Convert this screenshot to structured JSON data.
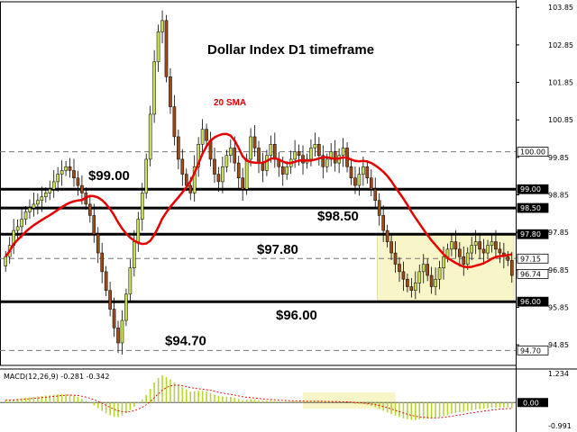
{
  "chart_data": [
    {
      "type": "candlestick",
      "title": "Dollar Index D1 timeframe",
      "ylim": [
        94.3,
        104.0
      ],
      "yticks": [
        "103.85",
        "102.85",
        "101.85",
        "100.85",
        "99.85",
        "98.85",
        "97.85",
        "96.85",
        "95.85",
        "94.85"
      ],
      "current_price": 96.74,
      "current_price_label": "96.74",
      "sma_label": "20 SMA",
      "levels": [
        {
          "value": 99.0,
          "label": "$99.00",
          "tag": "99.00",
          "style": "solid"
        },
        {
          "value": 98.5,
          "label": "$98.50",
          "tag": "98.50",
          "style": "solid"
        },
        {
          "value": 97.8,
          "label": "$97.80",
          "tag": "97.80",
          "style": "solid"
        },
        {
          "value": 96.0,
          "label": "$96.00",
          "tag": "96.00",
          "style": "solid"
        },
        {
          "value": 100.0,
          "label": "",
          "tag": "100.00",
          "style": "dashed"
        },
        {
          "value": 97.15,
          "label": "",
          "tag": "97.15",
          "style": "dashed"
        },
        {
          "value": 94.7,
          "label": "$94.70",
          "tag": "94.70",
          "style": "dashed"
        }
      ],
      "range_box": {
        "from_bar": 93,
        "to_bar": 126,
        "low": 96.0,
        "high": 97.8
      },
      "closes": [
        97.2,
        97.5,
        97.9,
        98.0,
        98.2,
        98.4,
        98.5,
        98.6,
        98.7,
        98.8,
        98.9,
        99.0,
        99.2,
        99.4,
        99.5,
        99.6,
        99.5,
        99.3,
        99.1,
        98.9,
        98.6,
        98.3,
        97.8,
        97.3,
        96.8,
        96.3,
        95.8,
        95.3,
        94.9,
        95.5,
        96.2,
        96.9,
        97.6,
        98.2,
        98.9,
        99.8,
        101.0,
        102.4,
        103.2,
        103.5,
        102.0,
        101.2,
        100.4,
        99.8,
        99.4,
        99.1,
        98.9,
        99.6,
        100.2,
        100.6,
        100.3,
        99.8,
        99.4,
        99.2,
        99.6,
        99.9,
        100.1,
        99.7,
        99.3,
        99.0,
        99.8,
        100.4,
        100.1,
        99.7,
        99.5,
        99.9,
        100.2,
        99.8,
        99.6,
        99.4,
        99.6,
        99.8,
        100.0,
        99.9,
        99.7,
        99.8,
        100.1,
        100.2,
        99.9,
        99.6,
        99.8,
        100.0,
        99.7,
        99.9,
        100.1,
        99.6,
        99.3,
        99.1,
        99.4,
        99.6,
        99.3,
        99.0,
        98.7,
        98.3,
        97.9,
        97.6,
        97.3,
        97.0,
        96.8,
        96.6,
        96.4,
        96.3,
        96.5,
        96.8,
        97.0,
        96.7,
        96.4,
        96.6,
        96.9,
        97.2,
        97.4,
        97.6,
        97.4,
        97.2,
        97.0,
        97.3,
        97.5,
        97.6,
        97.4,
        97.3,
        97.5,
        97.6,
        97.4,
        97.3,
        97.2,
        97.1,
        96.7
      ],
      "macd": {
        "label": "MACD(12,26,9) -0.281 -0.342",
        "ylim": [
          -1.1,
          1.35
        ],
        "tick_top": "1.234",
        "tick_mid": "0.00",
        "tick_bottom": "-0.991",
        "histogram": [
          0.1,
          0.12,
          0.14,
          0.16,
          0.18,
          0.2,
          0.22,
          0.24,
          0.26,
          0.28,
          0.3,
          0.31,
          0.33,
          0.35,
          0.36,
          0.37,
          0.34,
          0.3,
          0.24,
          0.16,
          0.08,
          -0.02,
          -0.12,
          -0.24,
          -0.36,
          -0.46,
          -0.54,
          -0.6,
          -0.62,
          -0.55,
          -0.45,
          -0.32,
          -0.18,
          -0.03,
          0.12,
          0.32,
          0.58,
          0.85,
          1.05,
          1.15,
          1.08,
          0.98,
          0.86,
          0.74,
          0.64,
          0.55,
          0.46,
          0.48,
          0.5,
          0.5,
          0.46,
          0.4,
          0.33,
          0.28,
          0.26,
          0.25,
          0.24,
          0.2,
          0.15,
          0.1,
          0.12,
          0.15,
          0.13,
          0.1,
          0.08,
          0.09,
          0.1,
          0.07,
          0.05,
          0.03,
          0.04,
          0.05,
          0.06,
          0.05,
          0.04,
          0.04,
          0.05,
          0.06,
          0.05,
          0.03,
          0.03,
          0.04,
          0.02,
          0.02,
          0.03,
          0.0,
          -0.03,
          -0.06,
          -0.07,
          -0.07,
          -0.1,
          -0.14,
          -0.2,
          -0.27,
          -0.35,
          -0.42,
          -0.49,
          -0.56,
          -0.62,
          -0.67,
          -0.71,
          -0.74,
          -0.74,
          -0.72,
          -0.7,
          -0.69,
          -0.68,
          -0.66,
          -0.62,
          -0.57,
          -0.52,
          -0.47,
          -0.44,
          -0.41,
          -0.39,
          -0.36,
          -0.33,
          -0.3,
          -0.28,
          -0.27,
          -0.25,
          -0.23,
          -0.22,
          -0.21,
          -0.21,
          -0.21,
          -0.24
        ],
        "signal_color": "#e00000",
        "hist_color": "#b8d431"
      },
      "highlight_box_macd": {
        "from_bar": 74,
        "to_bar": 97
      }
    }
  ],
  "colors": {
    "bull": "#c8dd5a",
    "bear": "#9c4a1a",
    "sma": "#e60000",
    "highlight": "#f8f5c8",
    "border": "#000000"
  }
}
